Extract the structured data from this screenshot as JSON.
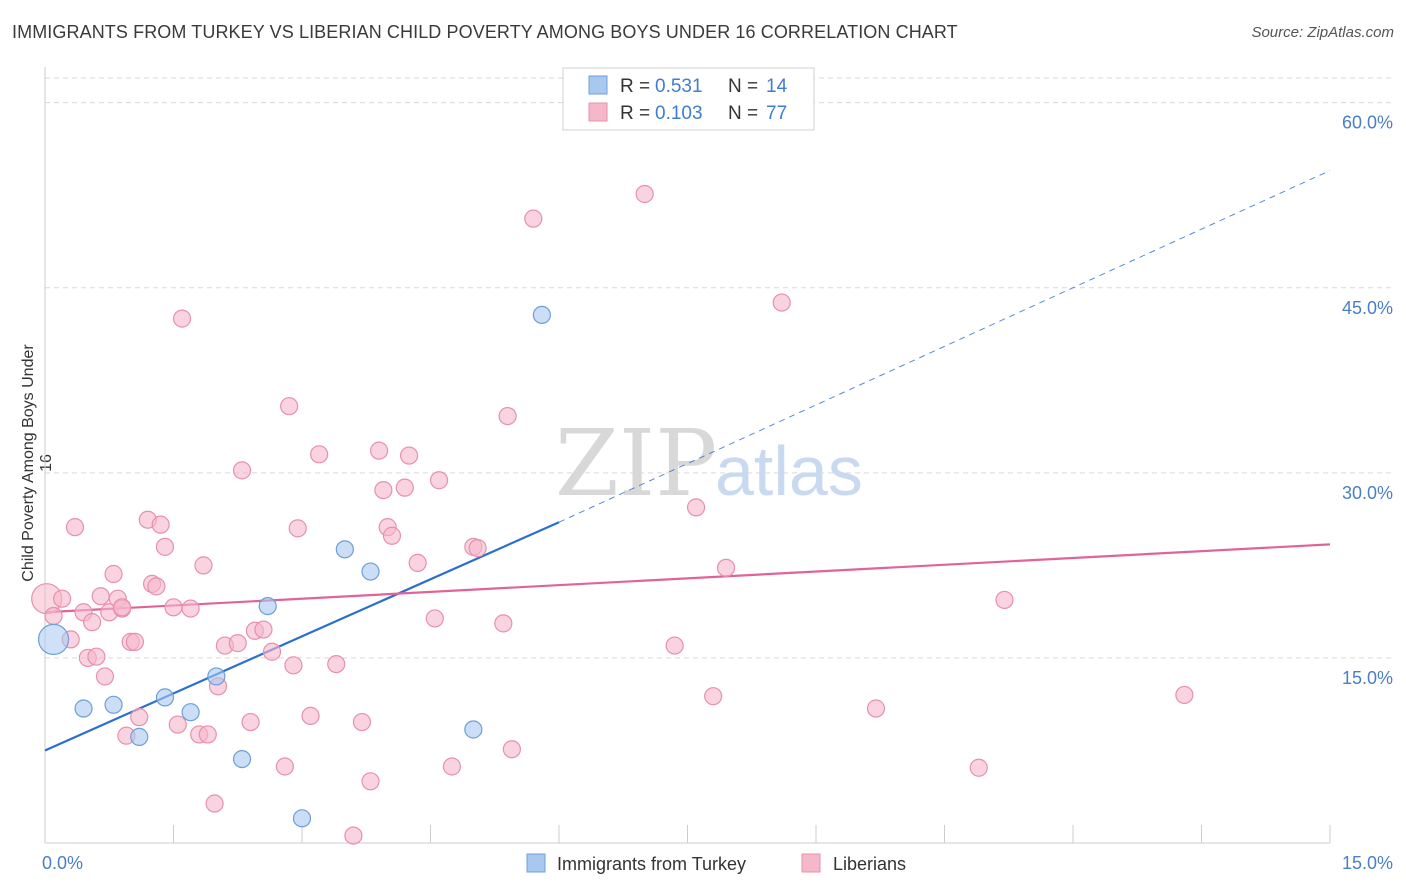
{
  "title": "IMMIGRANTS FROM TURKEY VS LIBERIAN CHILD POVERTY AMONG BOYS UNDER 16 CORRELATION CHART",
  "source": "Source: ZipAtlas.com",
  "watermark": {
    "zip": "ZIP",
    "atlas": "atlas"
  },
  "colors": {
    "turkey_fill": "#a8c8f0",
    "turkey_stroke": "#6d9fd8",
    "turkey_line": "#2b6fcc",
    "liberian_fill": "#f5b8cb",
    "liberian_stroke": "#e890ab",
    "liberian_line": "#e0649a",
    "tick_label": "#4a7fc8",
    "grid": "#d9d9d9"
  },
  "legend": {
    "rows": [
      {
        "r_label": "R = ",
        "r_value": "0.531",
        "n_label": "N = ",
        "n_value": "14"
      },
      {
        "r_label": "R = ",
        "r_value": "0.103",
        "n_label": "N = ",
        "n_value": "77"
      }
    ]
  },
  "bottom_legend": [
    "Immigrants from Turkey",
    "Liberians"
  ],
  "chart_data": {
    "type": "scatter",
    "title": "IMMIGRANTS FROM TURKEY VS LIBERIAN CHILD POVERTY AMONG BOYS UNDER 16 CORRELATION CHART",
    "xlabel": "",
    "ylabel": "Child Poverty Among Boys Under 16",
    "xlim": [
      0,
      15
    ],
    "ylim": [
      0,
      62
    ],
    "x_ticks": [
      "0.0%",
      "15.0%"
    ],
    "y_ticks": [
      {
        "value": 15,
        "label": "15.0%"
      },
      {
        "value": 30,
        "label": "30.0%"
      },
      {
        "value": 45,
        "label": "45.0%"
      },
      {
        "value": 60,
        "label": "60.0%"
      }
    ],
    "grid": true,
    "legend_position": "top-center",
    "series": [
      {
        "name": "Immigrants from Turkey",
        "r": 0.531,
        "n": 14,
        "trend": {
          "x0": 0,
          "y0": 7.5,
          "x1": 6,
          "y1": 26,
          "dash_to_x": 15,
          "dash_to_y": 54.5
        },
        "points": [
          {
            "x": 0.1,
            "y": 16.5,
            "big": true
          },
          {
            "x": 0.45,
            "y": 10.9
          },
          {
            "x": 0.8,
            "y": 11.2
          },
          {
            "x": 1.1,
            "y": 8.6
          },
          {
            "x": 1.4,
            "y": 11.8
          },
          {
            "x": 1.7,
            "y": 10.6
          },
          {
            "x": 2.0,
            "y": 13.5
          },
          {
            "x": 2.3,
            "y": 6.8
          },
          {
            "x": 2.6,
            "y": 19.2
          },
          {
            "x": 3.0,
            "y": 2.0
          },
          {
            "x": 3.5,
            "y": 23.8
          },
          {
            "x": 3.8,
            "y": 22.0
          },
          {
            "x": 5.0,
            "y": 9.2
          },
          {
            "x": 5.8,
            "y": 42.8
          }
        ]
      },
      {
        "name": "Liberians",
        "r": 0.103,
        "n": 77,
        "trend": {
          "x0": 0,
          "y0": 18.7,
          "x1": 15,
          "y1": 24.2
        },
        "points": [
          {
            "x": 0.02,
            "y": 19.8,
            "big": true
          },
          {
            "x": 0.1,
            "y": 18.4
          },
          {
            "x": 0.2,
            "y": 19.8
          },
          {
            "x": 0.3,
            "y": 16.5
          },
          {
            "x": 0.35,
            "y": 25.6
          },
          {
            "x": 0.45,
            "y": 18.7
          },
          {
            "x": 0.5,
            "y": 15.0
          },
          {
            "x": 0.55,
            "y": 17.9
          },
          {
            "x": 0.6,
            "y": 15.1
          },
          {
            "x": 0.65,
            "y": 20.0
          },
          {
            "x": 0.7,
            "y": 13.5
          },
          {
            "x": 0.75,
            "y": 18.7
          },
          {
            "x": 0.8,
            "y": 21.8
          },
          {
            "x": 0.85,
            "y": 19.8
          },
          {
            "x": 0.9,
            "y": 19.0
          },
          {
            "x": 0.95,
            "y": 8.7
          },
          {
            "x": 1.0,
            "y": 16.3
          },
          {
            "x": 1.05,
            "y": 16.3
          },
          {
            "x": 1.1,
            "y": 10.2
          },
          {
            "x": 1.2,
            "y": 26.2
          },
          {
            "x": 1.25,
            "y": 21.0
          },
          {
            "x": 1.3,
            "y": 20.8
          },
          {
            "x": 1.35,
            "y": 25.8
          },
          {
            "x": 1.4,
            "y": 24.0
          },
          {
            "x": 1.5,
            "y": 19.1
          },
          {
            "x": 1.55,
            "y": 9.6
          },
          {
            "x": 1.6,
            "y": 42.5
          },
          {
            "x": 1.7,
            "y": 19.0
          },
          {
            "x": 1.8,
            "y": 8.8
          },
          {
            "x": 1.85,
            "y": 22.5
          },
          {
            "x": 1.9,
            "y": 8.8
          },
          {
            "x": 1.98,
            "y": 3.2
          },
          {
            "x": 2.02,
            "y": 12.7
          },
          {
            "x": 2.1,
            "y": 16.0
          },
          {
            "x": 2.25,
            "y": 16.2
          },
          {
            "x": 2.3,
            "y": 30.2
          },
          {
            "x": 2.4,
            "y": 9.8
          },
          {
            "x": 2.45,
            "y": 17.2
          },
          {
            "x": 2.55,
            "y": 17.3
          },
          {
            "x": 2.65,
            "y": 15.5
          },
          {
            "x": 2.8,
            "y": 6.2
          },
          {
            "x": 2.85,
            "y": 35.4
          },
          {
            "x": 2.9,
            "y": 14.4
          },
          {
            "x": 2.95,
            "y": 25.5
          },
          {
            "x": 3.1,
            "y": 10.3
          },
          {
            "x": 3.2,
            "y": 31.5
          },
          {
            "x": 3.4,
            "y": 14.5
          },
          {
            "x": 3.6,
            "y": 0.6
          },
          {
            "x": 3.7,
            "y": 9.8
          },
          {
            "x": 3.8,
            "y": 5.0
          },
          {
            "x": 3.9,
            "y": 31.8
          },
          {
            "x": 3.95,
            "y": 28.6
          },
          {
            "x": 4.0,
            "y": 25.6
          },
          {
            "x": 4.05,
            "y": 24.9
          },
          {
            "x": 4.2,
            "y": 28.8
          },
          {
            "x": 4.25,
            "y": 31.4
          },
          {
            "x": 4.35,
            "y": 22.7
          },
          {
            "x": 4.55,
            "y": 18.2
          },
          {
            "x": 4.6,
            "y": 29.4
          },
          {
            "x": 4.75,
            "y": 6.2
          },
          {
            "x": 5.0,
            "y": 24.0
          },
          {
            "x": 5.05,
            "y": 23.9
          },
          {
            "x": 5.35,
            "y": 17.8
          },
          {
            "x": 5.4,
            "y": 34.6
          },
          {
            "x": 5.45,
            "y": 7.6
          },
          {
            "x": 5.7,
            "y": 50.6
          },
          {
            "x": 7.0,
            "y": 52.6
          },
          {
            "x": 7.35,
            "y": 16.0
          },
          {
            "x": 7.6,
            "y": 27.2
          },
          {
            "x": 7.8,
            "y": 11.9
          },
          {
            "x": 7.95,
            "y": 22.3
          },
          {
            "x": 8.6,
            "y": 43.8
          },
          {
            "x": 9.7,
            "y": 10.9
          },
          {
            "x": 10.9,
            "y": 6.1
          },
          {
            "x": 11.2,
            "y": 19.7
          },
          {
            "x": 13.3,
            "y": 12.0
          },
          {
            "x": 0.9,
            "y": 19.1
          }
        ]
      }
    ]
  }
}
